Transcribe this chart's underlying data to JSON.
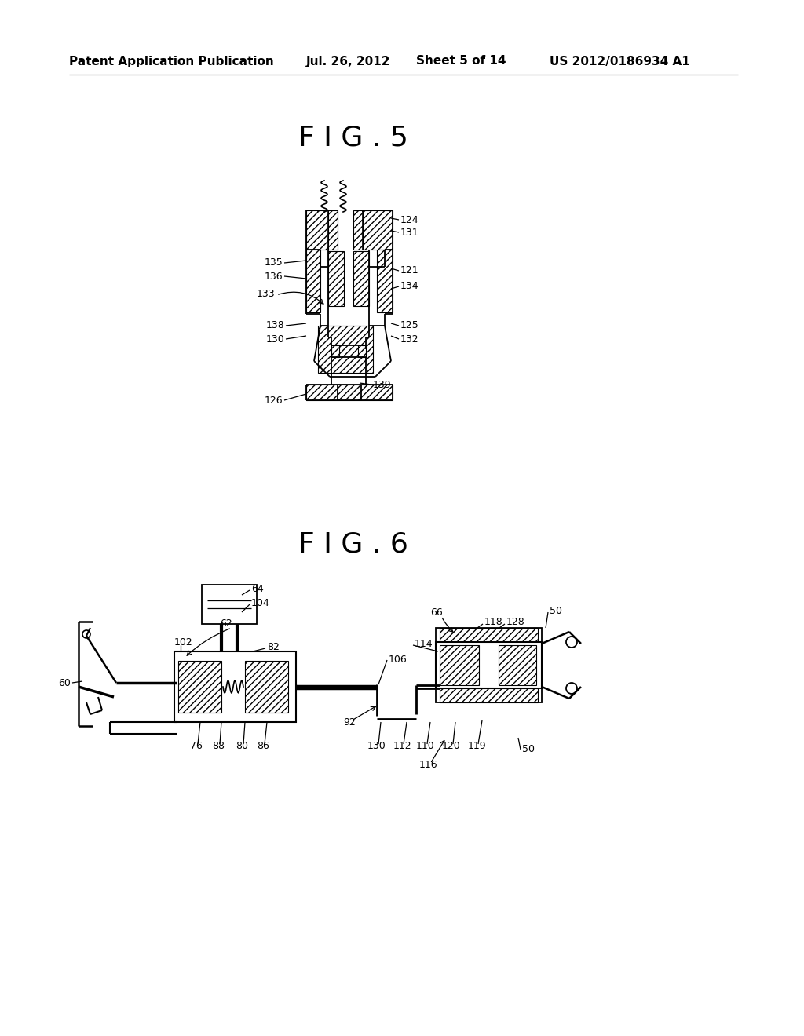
{
  "bg_color": "#ffffff",
  "header_text": "Patent Application Publication",
  "header_date": "Jul. 26, 2012",
  "header_sheet": "Sheet 5 of 14",
  "header_patent": "US 2012/0186934 A1",
  "fig5_title": "F I G . 5",
  "fig6_title": "F I G . 6",
  "line_color": "#000000"
}
